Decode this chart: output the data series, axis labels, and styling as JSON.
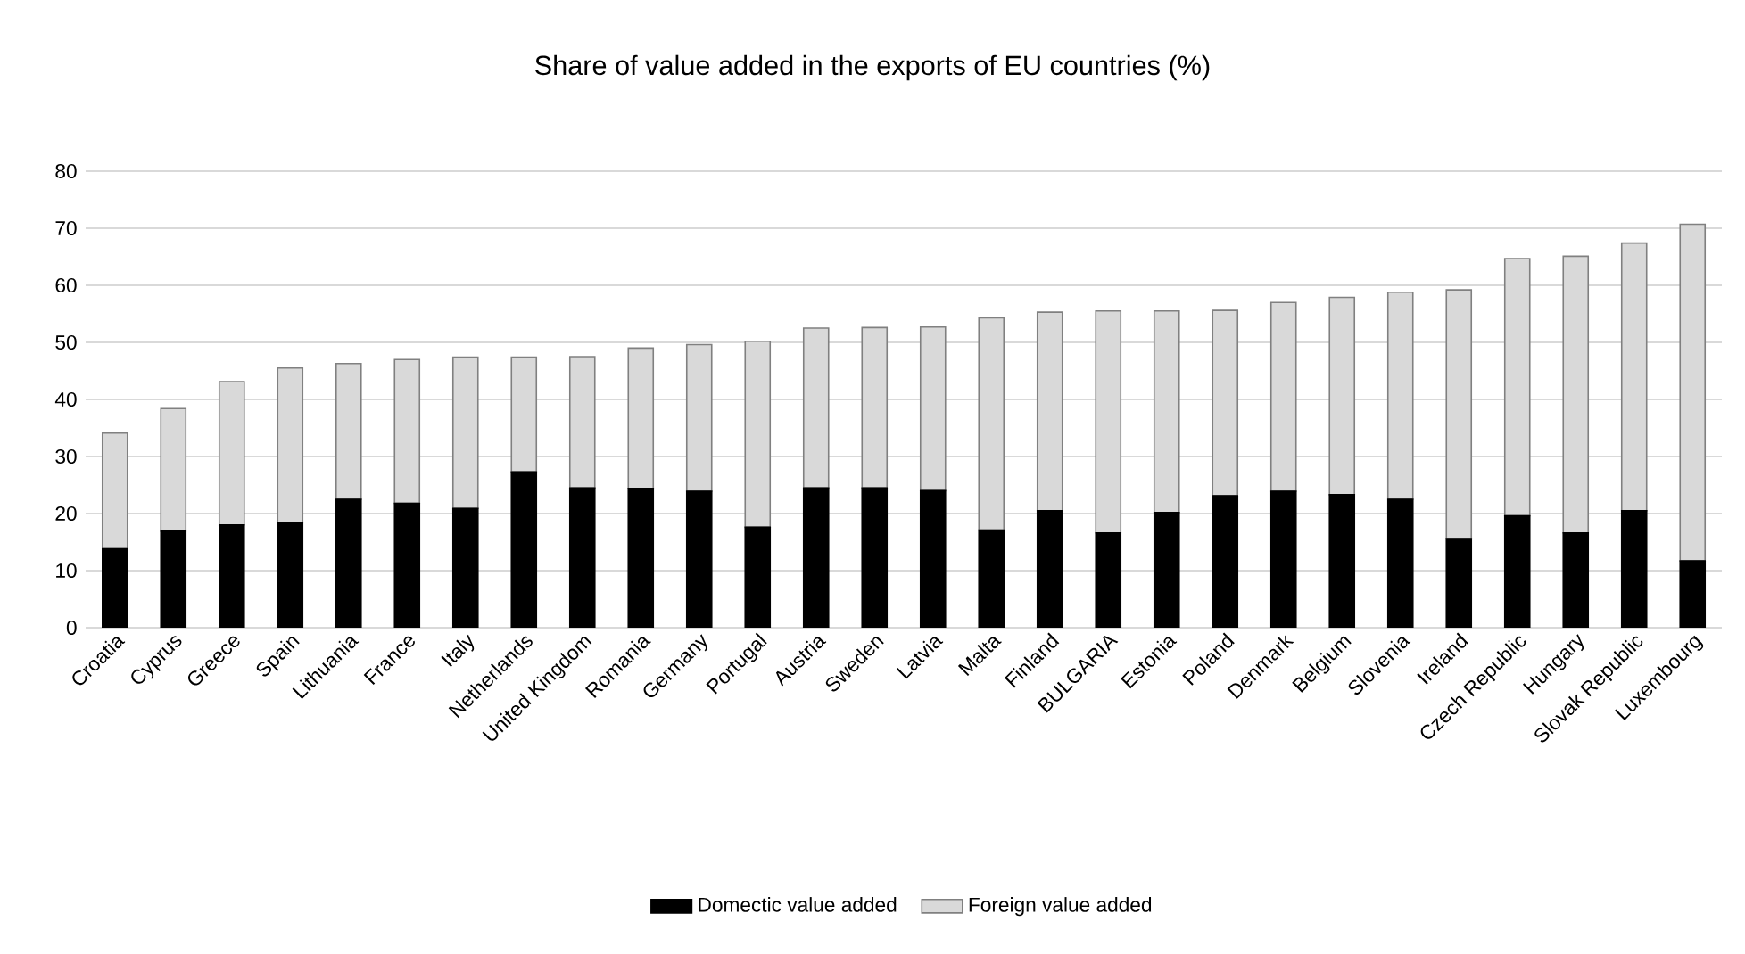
{
  "chart_data": {
    "type": "bar",
    "title": "Share of value added in the exports of EU countries (%)",
    "categories": [
      "Croatia",
      "Cyprus",
      "Greece",
      "Spain",
      "Lithuania",
      "France",
      "Italy",
      "Netherlands",
      "United Kingdom",
      "Romania",
      "Germany",
      "Portugal",
      "Austria",
      "Sweden",
      "Latvia",
      "Malta",
      "Finland",
      "BULGARIA",
      "Estonia",
      "Poland",
      "Denmark",
      "Belgium",
      "Slovenia",
      "Ireland",
      "Czech Republic",
      "Hungary",
      "Slovak Republic",
      "Luxembourg"
    ],
    "stacked": true,
    "series": [
      {
        "name": "Domectic value added",
        "color": "#000000",
        "values": [
          13.8,
          16.9,
          18.0,
          18.4,
          22.5,
          21.8,
          20.9,
          27.3,
          24.5,
          24.4,
          23.9,
          17.6,
          24.5,
          24.5,
          24.0,
          17.1,
          20.5,
          16.6,
          20.2,
          23.1,
          23.9,
          23.3,
          22.5,
          15.6,
          19.6,
          16.6,
          20.5,
          11.7
        ]
      },
      {
        "name": "Foreign value added",
        "color": "#d9d9d9",
        "values": [
          20.3,
          21.5,
          25.1,
          27.1,
          23.8,
          25.2,
          26.5,
          20.1,
          23.0,
          24.6,
          25.7,
          32.6,
          28.0,
          28.1,
          28.7,
          37.2,
          34.8,
          38.9,
          35.3,
          32.5,
          33.1,
          34.6,
          36.3,
          43.6,
          45.1,
          48.5,
          46.9,
          59.0
        ]
      }
    ],
    "ylim": [
      0,
      80
    ],
    "yticks": [
      0,
      10,
      20,
      30,
      40,
      50,
      60,
      70,
      80
    ],
    "grid": "y",
    "legend": "bottom"
  }
}
